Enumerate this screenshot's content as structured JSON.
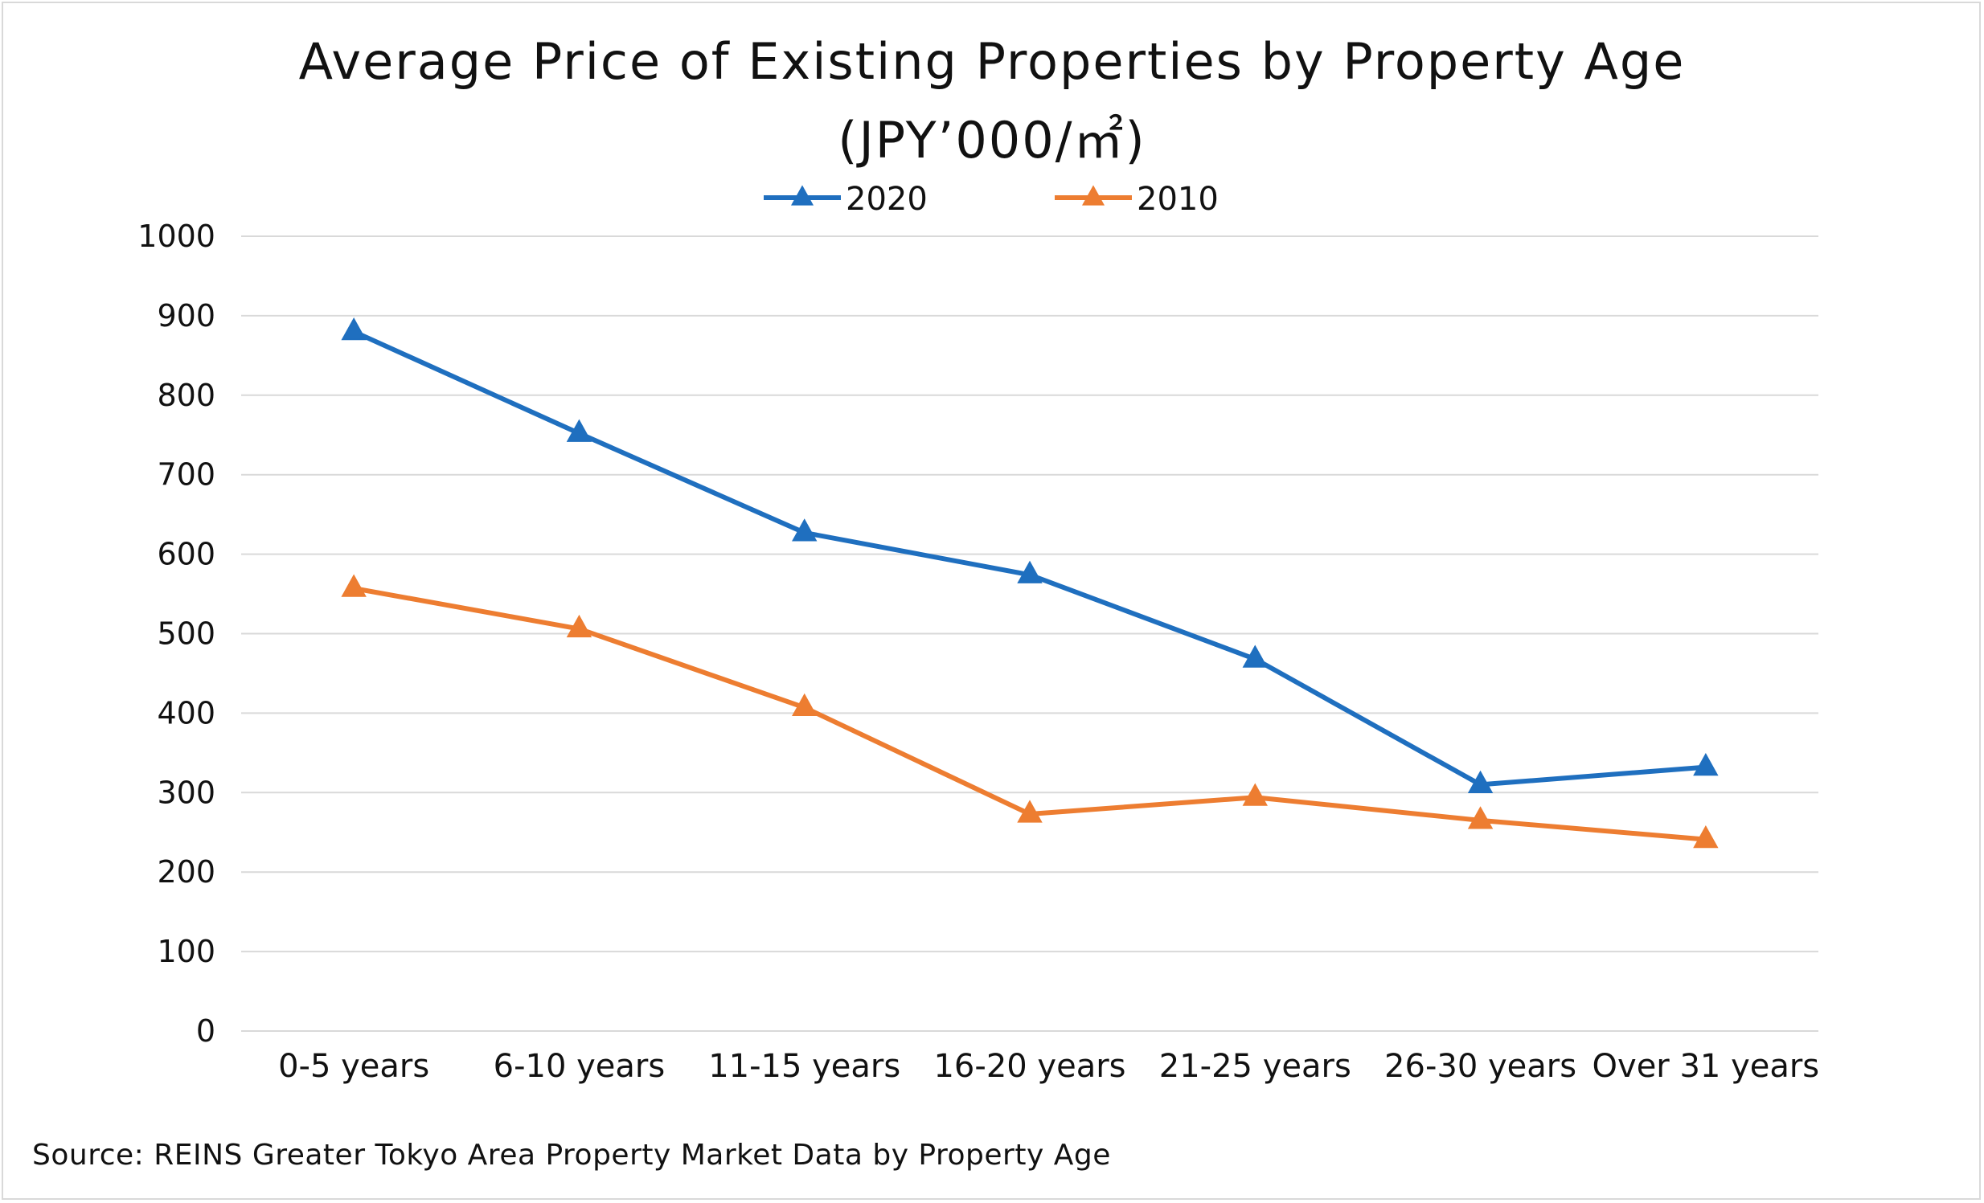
{
  "chart_data": {
    "type": "line",
    "title": "Average Price of Existing Properties by Property Age",
    "subtitle": "(JPY’000/㎡)",
    "categories": [
      "0-5 years",
      "6-10 years",
      "11-15 years",
      "16-20 years",
      "21-25 years",
      "26-30 years",
      "Over 31 years"
    ],
    "series": [
      {
        "name": "2020",
        "color": "#1f6fbf",
        "marker": "triangle",
        "values": [
          880,
          752,
          627,
          574,
          468,
          310,
          332
        ]
      },
      {
        "name": "2010",
        "color": "#ed7d31",
        "marker": "triangle",
        "values": [
          557,
          506,
          407,
          273,
          294,
          265,
          241
        ]
      }
    ],
    "ylim": [
      0,
      1000
    ],
    "yticks": [
      0,
      100,
      200,
      300,
      400,
      500,
      600,
      700,
      800,
      900,
      1000
    ],
    "grid": true,
    "legend_position": "top-center",
    "xlabel": "",
    "ylabel": ""
  },
  "source": "Source: REINS Greater Tokyo Area Property Market Data by Property Age"
}
